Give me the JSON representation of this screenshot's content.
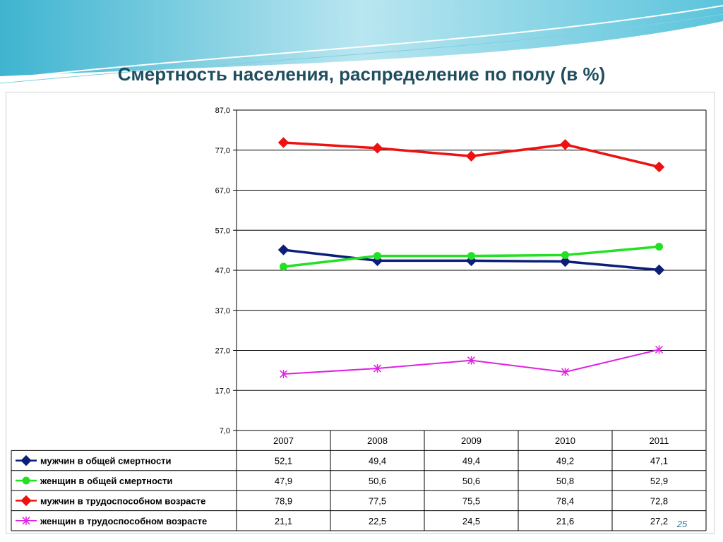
{
  "slide": {
    "title": "Смертность населения, распределение по полу (в %)",
    "page_number": "25"
  },
  "chart_data": {
    "type": "line",
    "title": "",
    "xlabel": "",
    "ylabel": "",
    "categories": [
      "2007",
      "2008",
      "2009",
      "2010",
      "2011"
    ],
    "ylim": [
      7,
      87
    ],
    "yticks": [
      7,
      17,
      27,
      37,
      47,
      57,
      67,
      77,
      87
    ],
    "ytick_labels": [
      "7,0",
      "17,0",
      "27,0",
      "37,0",
      "47,0",
      "57,0",
      "67,0",
      "77,0",
      "87,0"
    ],
    "grid": true,
    "legend": "data-table",
    "series": [
      {
        "name": "мужчин в общей смертности",
        "values": [
          52.1,
          49.4,
          49.4,
          49.2,
          47.1
        ],
        "labels": [
          "52,1",
          "49,4",
          "49,4",
          "49,2",
          "47,1"
        ],
        "color": "#0b1f7a",
        "marker": "diamond"
      },
      {
        "name": "женщин в общей смертности",
        "values": [
          47.9,
          50.6,
          50.6,
          50.8,
          52.9
        ],
        "labels": [
          "47,9",
          "50,6",
          "50,6",
          "50,8",
          "52,9"
        ],
        "color": "#22e022",
        "marker": "circle"
      },
      {
        "name": "мужчин в трудоспособном возрасте",
        "values": [
          78.9,
          77.5,
          75.5,
          78.4,
          72.8
        ],
        "labels": [
          "78,9",
          "77,5",
          "75,5",
          "78,4",
          "72,8"
        ],
        "color": "#ee1111",
        "marker": "diamond"
      },
      {
        "name": "женщин в трудоспособном возрасте",
        "values": [
          21.1,
          22.5,
          24.5,
          21.6,
          27.2
        ],
        "labels": [
          "21,1",
          "22,5",
          "24,5",
          "21,6",
          "27,2"
        ],
        "color": "#e020e0",
        "marker": "star"
      }
    ]
  }
}
